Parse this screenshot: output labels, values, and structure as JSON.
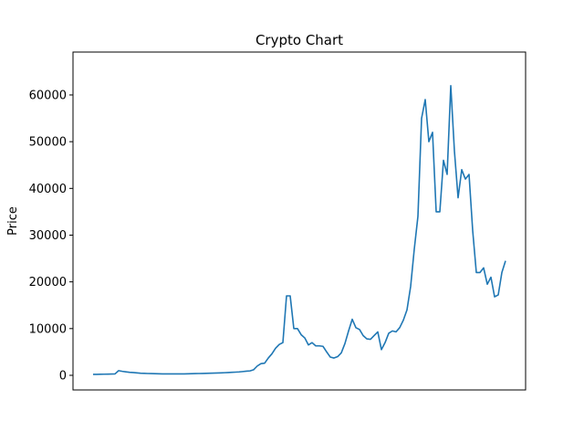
{
  "chart_data": {
    "type": "line",
    "title": "Crypto Chart",
    "y_label": "Price",
    "color": "#1f77b4",
    "values": [
      200,
      200,
      220,
      240,
      260,
      280,
      300,
      1000,
      850,
      750,
      650,
      600,
      520,
      450,
      420,
      390,
      370,
      350,
      320,
      300,
      300,
      300,
      300,
      300,
      300,
      310,
      330,
      350,
      370,
      390,
      410,
      430,
      450,
      470,
      490,
      520,
      560,
      600,
      640,
      680,
      730,
      800,
      880,
      950,
      1200,
      2000,
      2500,
      2600,
      3700,
      4600,
      5800,
      6600,
      7000,
      17000,
      17000,
      10000,
      10000,
      8700,
      8000,
      6500,
      7000,
      6300,
      6300,
      6200,
      5000,
      3900,
      3700,
      4000,
      4800,
      6800,
      9500,
      12000,
      10200,
      9800,
      8500,
      7800,
      7700,
      8500,
      9300,
      5500,
      7000,
      9000,
      9500,
      9300,
      10200,
      11800,
      14000,
      19000,
      27000,
      34000,
      55000,
      59000,
      50000,
      52000,
      35000,
      35000,
      46000,
      43000,
      62000,
      48000,
      38000,
      44000,
      42000,
      43000,
      31000,
      22000,
      22000,
      23000,
      19500,
      21000,
      16800,
      17200,
      22000,
      24500
    ],
    "ylim": [
      -3130,
      69180
    ],
    "yticks": [
      0,
      10000,
      20000,
      30000,
      40000,
      50000,
      60000
    ]
  }
}
